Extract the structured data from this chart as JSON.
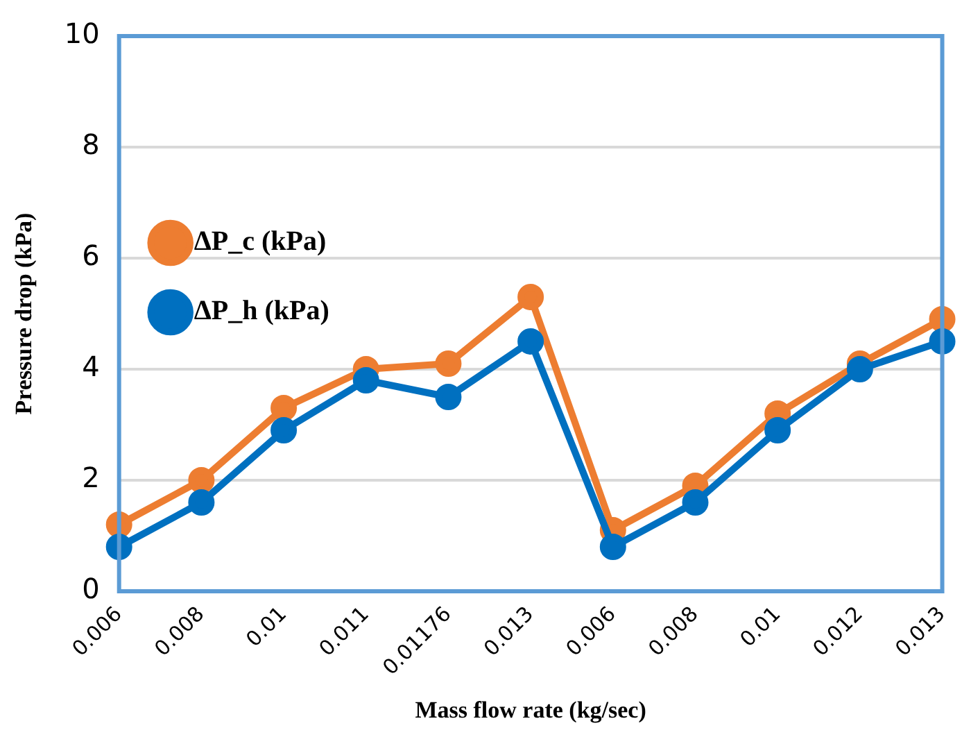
{
  "chart_data": {
    "type": "line",
    "xlabel": "Mass flow rate (kg/sec)",
    "ylabel": "Pressure drop (kPa)",
    "categories": [
      "0.006",
      "0.008",
      "0.01",
      "0.011",
      "0.01176",
      "0.013",
      "0.006",
      "0.008",
      "0.01",
      "0.012",
      "0.013"
    ],
    "series": [
      {
        "name": "ΔP_c (kPa)",
        "color": "#ed7d31",
        "values": [
          1.2,
          2.0,
          3.3,
          4.0,
          4.1,
          5.3,
          1.1,
          1.9,
          3.2,
          4.1,
          4.9
        ]
      },
      {
        "name": "ΔP_h (kPa)",
        "color": "#0070c0",
        "values": [
          0.8,
          1.6,
          2.9,
          3.8,
          3.5,
          4.5,
          0.8,
          1.6,
          2.9,
          4.0,
          4.5
        ]
      }
    ],
    "ylim": [
      0,
      10
    ],
    "yticks": [
      0,
      2,
      4,
      6,
      8,
      10
    ],
    "grid": "y",
    "legend": "top",
    "marker": "circle",
    "line_style": "solid"
  }
}
